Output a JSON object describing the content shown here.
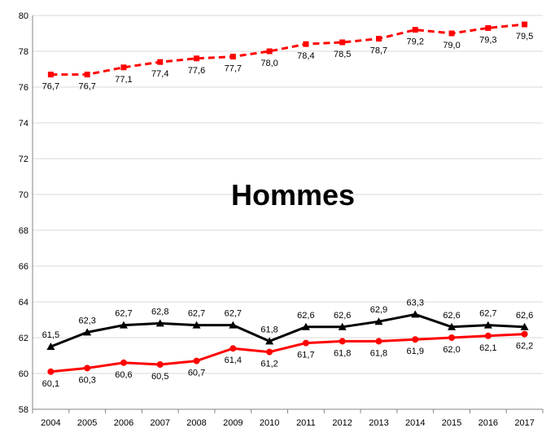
{
  "chart_data": {
    "type": "line",
    "title": "Hommes",
    "xlabel": "",
    "ylabel": "",
    "categories": [
      "2004",
      "2005",
      "2006",
      "2007",
      "2008",
      "2009",
      "2010",
      "2011",
      "2012",
      "2013",
      "2014",
      "2015",
      "2016",
      "2017"
    ],
    "ylim": [
      58,
      80
    ],
    "yticks": [
      58,
      60,
      62,
      64,
      66,
      68,
      70,
      72,
      74,
      76,
      78,
      80
    ],
    "grid": true,
    "legend": "none",
    "series": [
      {
        "key": "dashed-red-squares",
        "color": "#ff0000",
        "line_style": "dashed",
        "marker": "square",
        "label_position": "below",
        "values": [
          76.7,
          76.7,
          77.1,
          77.4,
          77.6,
          77.7,
          78.0,
          78.4,
          78.5,
          78.7,
          79.2,
          79.0,
          79.3,
          79.5
        ],
        "labels": [
          "76,7",
          "76,7",
          "77,1",
          "77,4",
          "77,6",
          "77,7",
          "78,0",
          "78,4",
          "78,5",
          "78,7",
          "79,2",
          "79,0",
          "79,3",
          "79,5"
        ]
      },
      {
        "key": "black-triangles",
        "color": "#000000",
        "line_style": "solid",
        "marker": "triangle",
        "label_position": "above",
        "values": [
          61.5,
          62.3,
          62.7,
          62.8,
          62.7,
          62.7,
          61.8,
          62.6,
          62.6,
          62.9,
          63.3,
          62.6,
          62.7,
          62.6
        ],
        "labels": [
          "61,5",
          "62,3",
          "62,7",
          "62,8",
          "62,7",
          "62,7",
          "61,8",
          "62,6",
          "62,6",
          "62,9",
          "63,3",
          "62,6",
          "62,7",
          "62,6"
        ]
      },
      {
        "key": "red-circles",
        "color": "#ff0000",
        "line_style": "solid",
        "marker": "circle",
        "label_position": "below",
        "values": [
          60.1,
          60.3,
          60.6,
          60.5,
          60.7,
          61.4,
          61.2,
          61.7,
          61.8,
          61.8,
          61.9,
          62.0,
          62.1,
          62.2
        ],
        "labels": [
          "60,1",
          "60,3",
          "60,6",
          "60,5",
          "60,7",
          "61,4",
          "61,2",
          "61,7",
          "61,8",
          "61,8",
          "61,9",
          "62,0",
          "62,1",
          "62,2"
        ]
      }
    ]
  }
}
